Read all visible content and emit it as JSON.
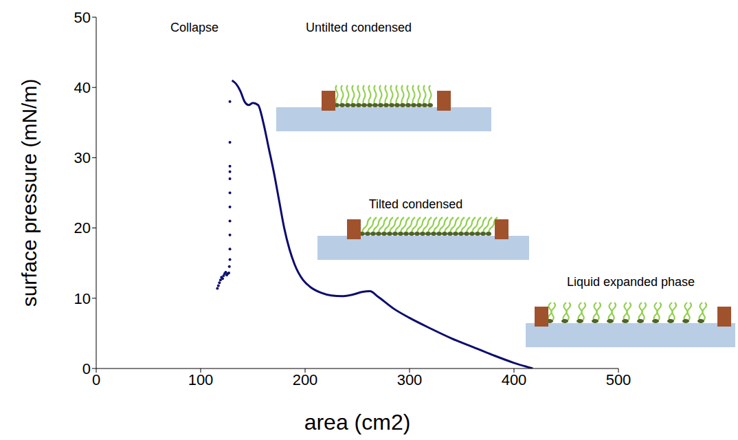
{
  "chart_data": {
    "type": "line",
    "x_label": "area (cm2)",
    "y_label": "surface pressure (mN/m)",
    "xlim": [
      0,
      500
    ],
    "xticks": [
      0,
      100,
      200,
      300,
      400,
      500
    ],
    "ylim": [
      0,
      50
    ],
    "yticks": [
      0,
      10,
      20,
      30,
      40,
      50
    ],
    "grid": false,
    "annotations": [
      "Collapse",
      "Untilted condensed",
      "Tilted condensed",
      "Liquid expanded phase"
    ],
    "series": [
      {
        "type": "line",
        "color": "#0c0c6e",
        "line_style": "solid",
        "x": [
          418,
          400,
          380,
          360,
          340,
          320,
          300,
          285,
          270,
          262,
          255,
          245,
          235,
          225,
          215,
          205,
          198,
          190,
          185,
          180,
          175,
          170,
          165,
          160,
          155,
          150,
          146,
          142,
          138,
          134,
          130
        ],
        "values": [
          0,
          0.8,
          1.9,
          3.1,
          4.3,
          5.7,
          7.2,
          8.5,
          10.2,
          11,
          10.9,
          10.5,
          10.3,
          10.4,
          10.8,
          11.6,
          12.6,
          14.8,
          17,
          20,
          24,
          28,
          31.5,
          35,
          37.5,
          37.8,
          37.5,
          38,
          39.5,
          40.5,
          41
        ]
      },
      {
        "type": "scatter",
        "color": "#0c0c6e",
        "marker": "circle",
        "x": [
          128,
          128,
          128,
          128,
          128,
          128,
          128,
          128,
          128,
          128,
          128,
          127.5,
          127,
          126,
          125,
          124,
          123,
          122,
          121,
          120,
          119,
          118,
          117,
          116
        ],
        "values": [
          38,
          32.2,
          28.8,
          28,
          27,
          25,
          23,
          21,
          19,
          17,
          15.5,
          14.5,
          13.6,
          13.5,
          13.3,
          13.7,
          13.5,
          13.2,
          12.8,
          13,
          12.6,
          12.2,
          11.8,
          11.4
        ]
      }
    ]
  }
}
